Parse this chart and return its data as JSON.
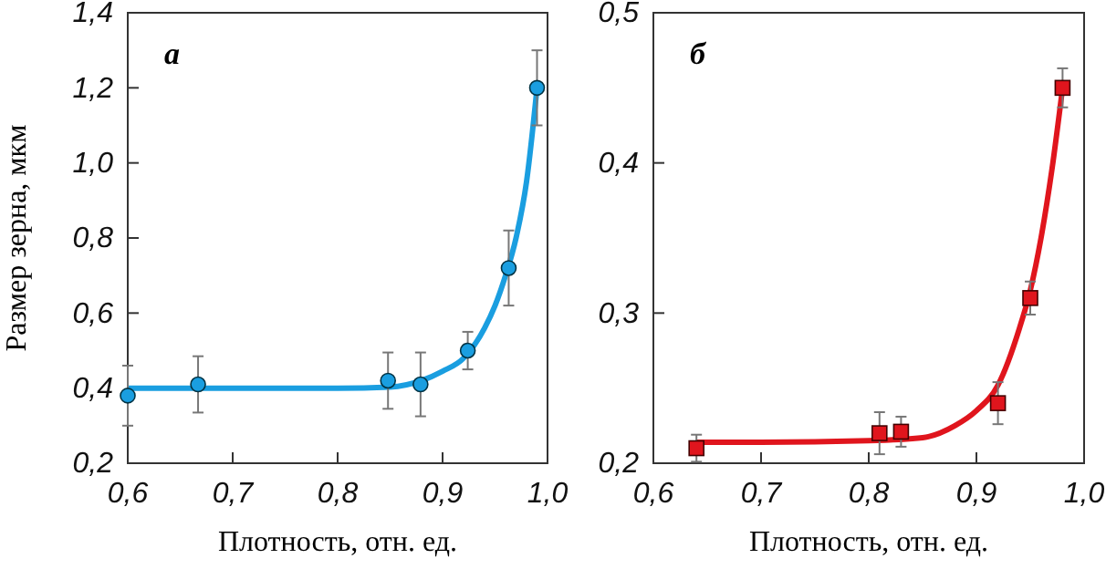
{
  "chart_data": [
    {
      "type": "scatter",
      "xlabel": "Плотность, отн. ед.",
      "ylabel": "Размер зерна, мкм",
      "annotations": [
        "а"
      ],
      "xlim": [
        0.6,
        1.0
      ],
      "ylim": [
        0.2,
        1.4
      ],
      "xticks": [
        {
          "value": 0.6,
          "label": "0,6"
        },
        {
          "value": 0.7,
          "label": "0,7"
        },
        {
          "value": 0.8,
          "label": "0,8"
        },
        {
          "value": 0.9,
          "label": "0,9"
        },
        {
          "value": 1.0,
          "label": "1,0"
        }
      ],
      "yticks": [
        {
          "value": 0.2,
          "label": "0,2"
        },
        {
          "value": 0.4,
          "label": "0,4"
        },
        {
          "value": 0.6,
          "label": "0,6"
        },
        {
          "value": 0.8,
          "label": "0,8"
        },
        {
          "value": 1.0,
          "label": "1,0"
        },
        {
          "value": 1.2,
          "label": "1,2"
        },
        {
          "value": 1.4,
          "label": "1,4"
        }
      ],
      "series": [
        {
          "type": "line",
          "color": "#1a9ee0",
          "x": [
            0.6,
            0.7,
            0.8,
            0.85,
            0.88,
            0.9,
            0.92,
            0.94,
            0.95,
            0.96,
            0.97,
            0.98,
            0.99
          ],
          "values": [
            0.4,
            0.4,
            0.4,
            0.403,
            0.42,
            0.445,
            0.48,
            0.56,
            0.62,
            0.7,
            0.8,
            0.95,
            1.2
          ]
        },
        {
          "color": "#1a9ee0",
          "marker": "circle",
          "x": [
            0.6,
            0.667,
            0.848,
            0.879,
            0.924,
            0.963,
            0.99
          ],
          "values": [
            0.38,
            0.41,
            0.42,
            0.41,
            0.5,
            0.72,
            1.2
          ],
          "errors": [
            0.08,
            0.075,
            0.075,
            0.085,
            0.05,
            0.1,
            0.1
          ]
        }
      ]
    },
    {
      "type": "scatter",
      "xlabel": "Плотность, отн. ед.",
      "annotations": [
        "б"
      ],
      "xlim": [
        0.6,
        1.0
      ],
      "ylim": [
        0.2,
        0.5
      ],
      "xticks": [
        {
          "value": 0.6,
          "label": "0,6"
        },
        {
          "value": 0.7,
          "label": "0,7"
        },
        {
          "value": 0.8,
          "label": "0,8"
        },
        {
          "value": 0.9,
          "label": "0,9"
        },
        {
          "value": 1.0,
          "label": "1,0"
        }
      ],
      "yticks": [
        {
          "value": 0.2,
          "label": "0,2"
        },
        {
          "value": 0.3,
          "label": "0,3"
        },
        {
          "value": 0.4,
          "label": "0,4"
        },
        {
          "value": 0.5,
          "label": "0,5"
        }
      ],
      "series": [
        {
          "type": "line",
          "color": "#e0151d",
          "x": [
            0.64,
            0.7,
            0.8,
            0.85,
            0.88,
            0.9,
            0.92,
            0.94,
            0.95,
            0.96,
            0.97,
            0.98
          ],
          "values": [
            0.214,
            0.214,
            0.215,
            0.217,
            0.225,
            0.235,
            0.252,
            0.29,
            0.315,
            0.35,
            0.395,
            0.45
          ]
        },
        {
          "color": "#e0151d",
          "marker": "square",
          "x": [
            0.64,
            0.81,
            0.83,
            0.92,
            0.95,
            0.98
          ],
          "values": [
            0.21,
            0.22,
            0.221,
            0.24,
            0.31,
            0.45
          ],
          "errors": [
            0.009,
            0.014,
            0.01,
            0.014,
            0.011,
            0.013
          ]
        }
      ]
    }
  ]
}
